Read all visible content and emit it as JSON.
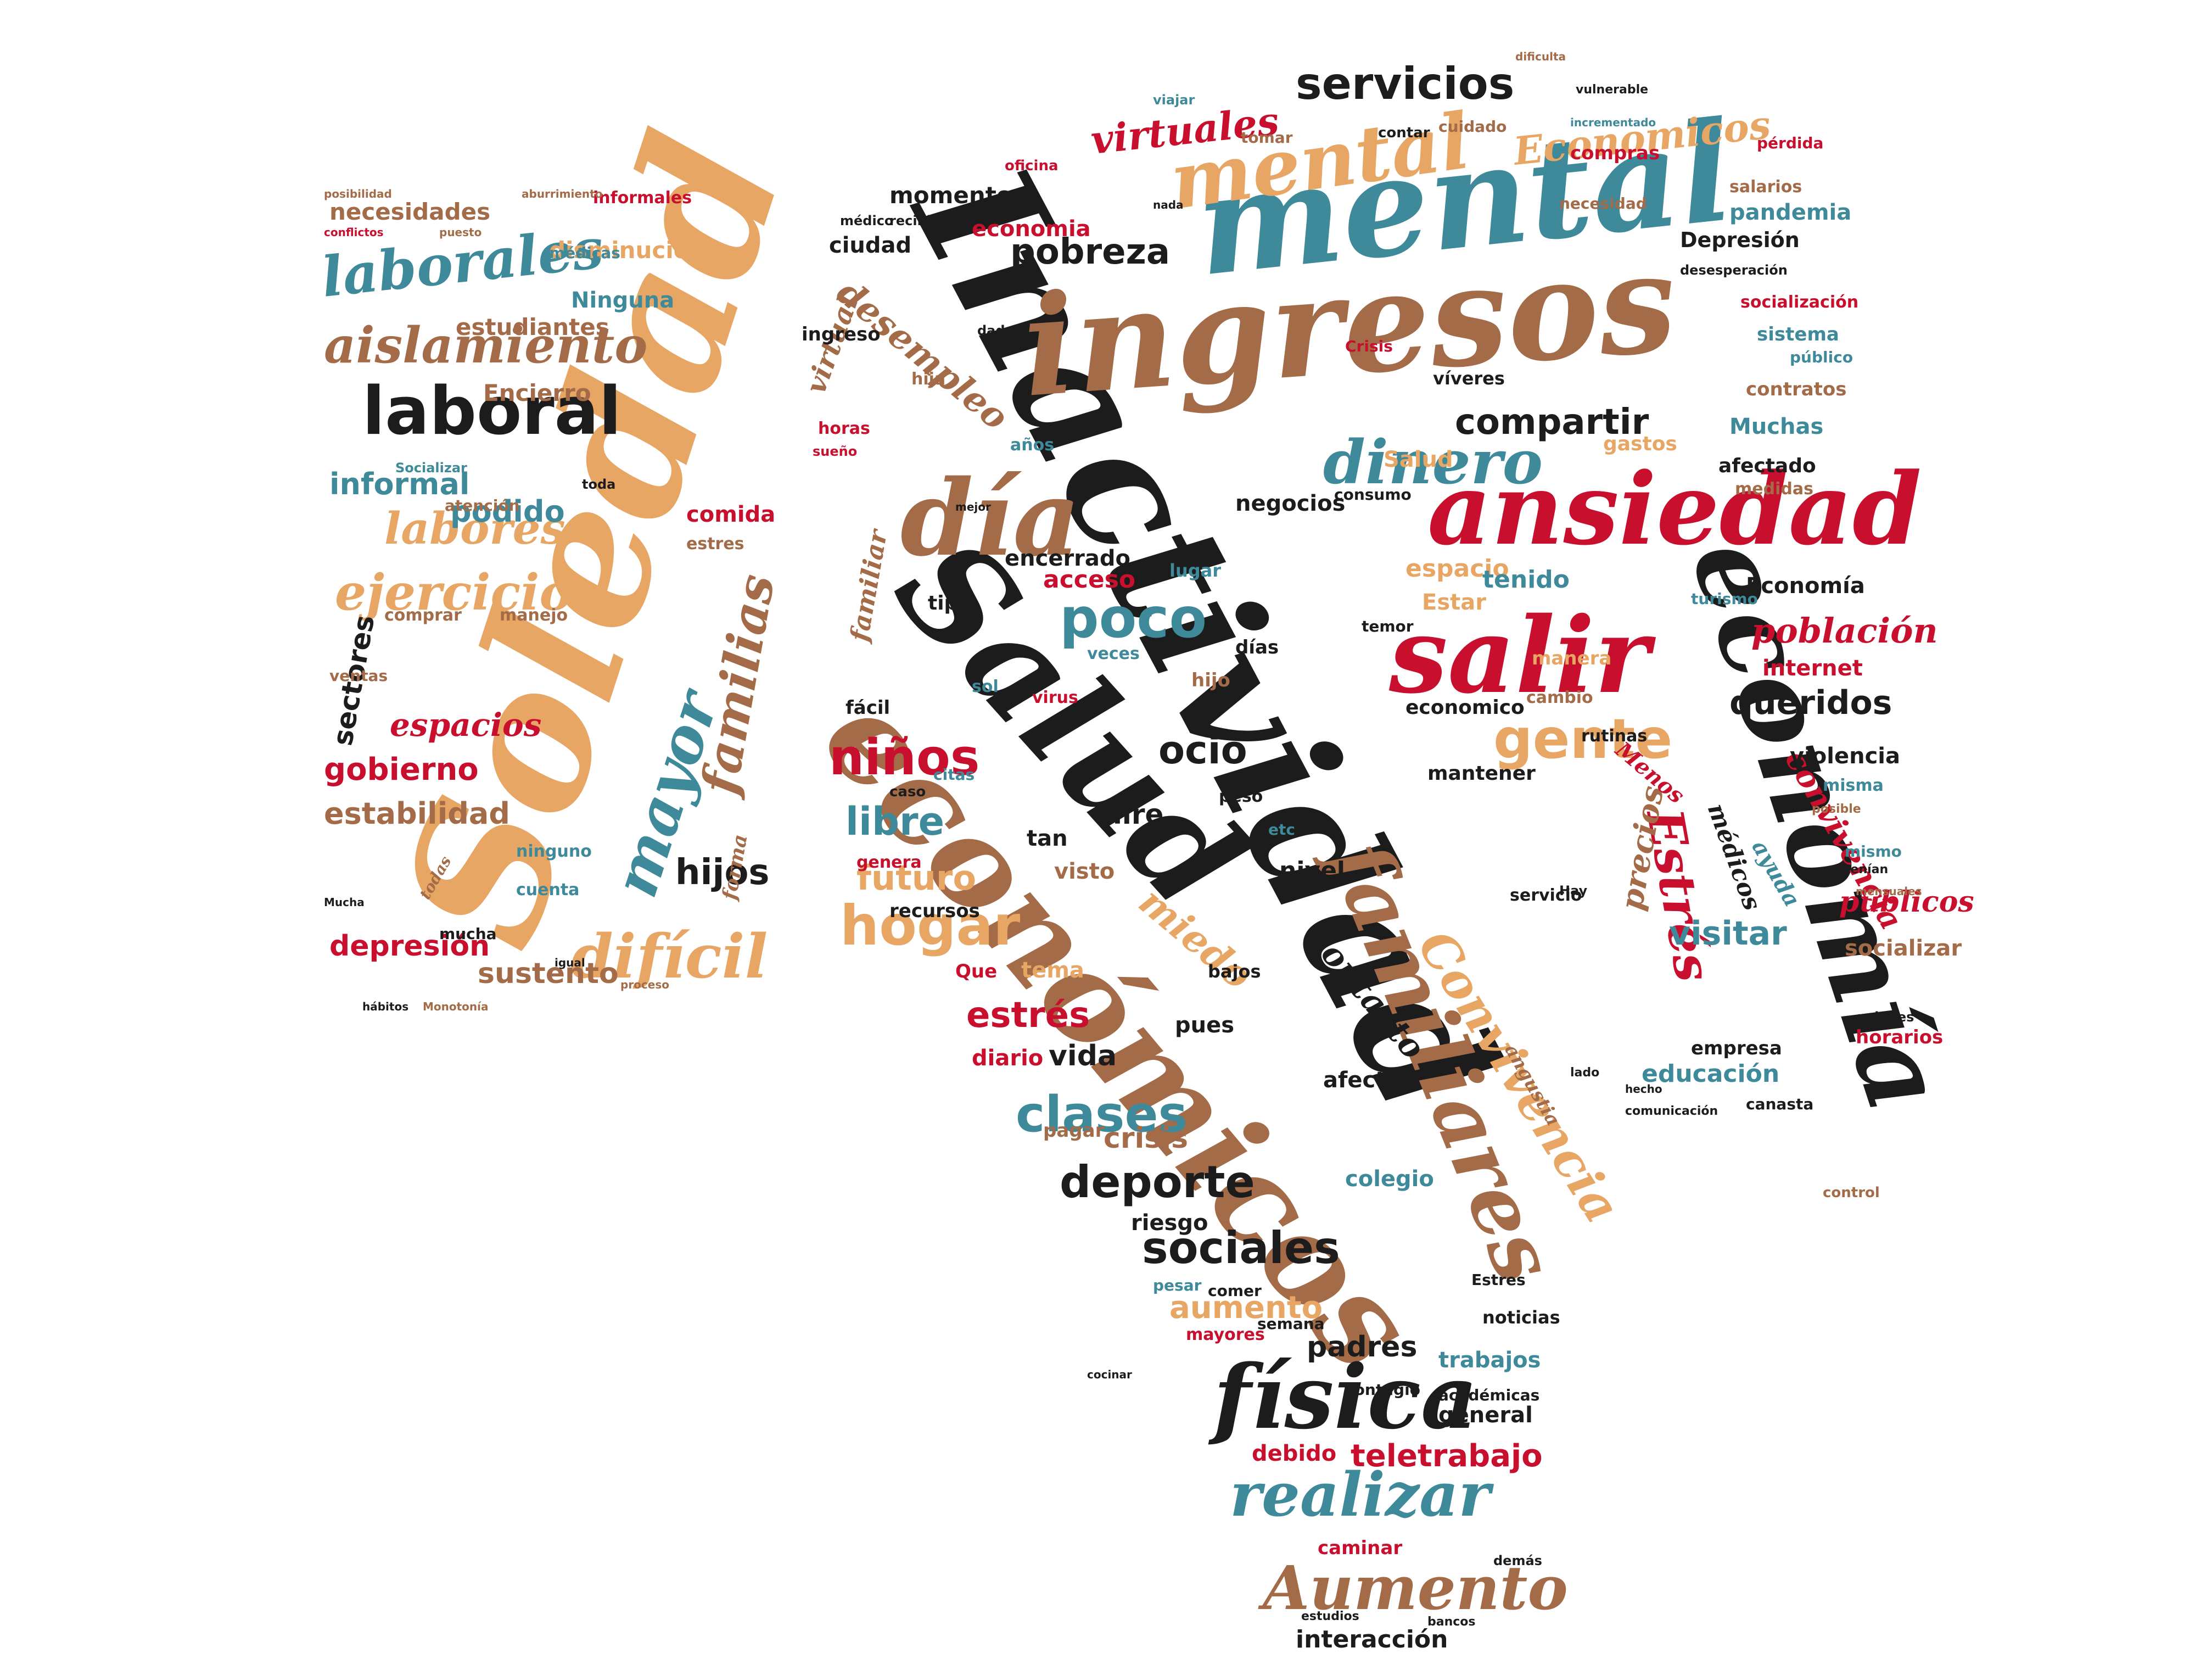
{
  "palette": {
    "black": "#1c1c1c",
    "teal": "#3e8a9a",
    "brown": "#a36b47",
    "sand": "#e8a665",
    "red": "#c8102e"
  },
  "words": [
    {
      "key": "inactividad",
      "text": "Inactividad"
    },
    {
      "key": "soledad",
      "text": "Soledad"
    },
    {
      "key": "ingresos",
      "text": "ingresos"
    },
    {
      "key": "mental",
      "text": "mental"
    },
    {
      "key": "salud",
      "text": "Salud"
    },
    {
      "key": "economicos",
      "text": "económicos"
    },
    {
      "key": "economia",
      "text": "economía"
    },
    {
      "key": "ansiedad",
      "text": "ansiedad"
    },
    {
      "key": "dia",
      "text": "día"
    },
    {
      "key": "salir",
      "text": "salir"
    },
    {
      "key": "familiares",
      "text": "familiares"
    },
    {
      "key": "fisica",
      "text": "física"
    },
    {
      "key": "mental2",
      "text": "mental"
    },
    {
      "key": "laboral",
      "text": "laboral"
    },
    {
      "key": "laborales",
      "text": "laborales"
    },
    {
      "key": "aislamiento",
      "text": "aislamiento"
    },
    {
      "key": "mayor",
      "text": "mayor"
    },
    {
      "key": "dificil",
      "text": "difícil"
    },
    {
      "key": "ejercicio",
      "text": "ejercicio"
    },
    {
      "key": "labores",
      "text": "labores"
    },
    {
      "key": "familias",
      "text": "familias"
    },
    {
      "key": "dinero",
      "text": "dinero"
    },
    {
      "key": "servicios",
      "text": "servicios"
    },
    {
      "key": "poco",
      "text": "poco"
    },
    {
      "key": "gente",
      "text": "gente"
    },
    {
      "key": "hogar",
      "text": "hogar"
    },
    {
      "key": "ninos",
      "text": "niños"
    },
    {
      "key": "realizar",
      "text": "realizar"
    },
    {
      "key": "aumento_cap",
      "text": "Aumento"
    },
    {
      "key": "convivencia",
      "text": "Convivencia"
    },
    {
      "key": "estres",
      "text": "Estrés"
    },
    {
      "key": "clases",
      "text": "clases"
    },
    {
      "key": "deporte",
      "text": "deporte"
    },
    {
      "key": "sociales",
      "text": "sociales"
    },
    {
      "key": "virtuales",
      "text": "virtuales"
    },
    {
      "key": "compartir",
      "text": "compartir"
    },
    {
      "key": "desempleo",
      "text": "desempleo"
    },
    {
      "key": "economicos_cap",
      "text": "Economicos"
    },
    {
      "key": "poblacion",
      "text": "población"
    },
    {
      "key": "convivencia2",
      "text": "convivencia"
    },
    {
      "key": "visitar",
      "text": "visitar"
    },
    {
      "key": "queridos",
      "text": "queridos"
    },
    {
      "key": "teletrabajo",
      "text": "teletrabajo"
    },
    {
      "key": "miedo",
      "text": "miedo"
    },
    {
      "key": "contacto",
      "text": "contacto"
    },
    {
      "key": "ocio",
      "text": "ocio"
    },
    {
      "key": "libre",
      "text": "libre"
    },
    {
      "key": "futuro",
      "text": "futuro"
    },
    {
      "key": "hijos",
      "text": "hijos"
    },
    {
      "key": "espacios",
      "text": "espacios"
    },
    {
      "key": "gobierno",
      "text": "gobierno"
    },
    {
      "key": "estabilidad",
      "text": "estabilidad"
    },
    {
      "key": "depresion",
      "text": "depresión"
    },
    {
      "key": "sustento",
      "text": "sustento"
    },
    {
      "key": "informal",
      "text": "informal"
    },
    {
      "key": "podido",
      "text": "podido"
    },
    {
      "key": "encierro",
      "text": "Encierro"
    },
    {
      "key": "estudiantes",
      "text": "estudiantes"
    },
    {
      "key": "necesidades",
      "text": "necesidades"
    },
    {
      "key": "disminucion",
      "text": "disminución"
    },
    {
      "key": "ninguna",
      "text": "Ninguna"
    },
    {
      "key": "sectores",
      "text": "sectores"
    },
    {
      "key": "comida",
      "text": "comida"
    },
    {
      "key": "estres2",
      "text": "estrés"
    },
    {
      "key": "pobreza",
      "text": "pobreza"
    },
    {
      "key": "momento",
      "text": "momento"
    },
    {
      "key": "depresion_cap",
      "text": "Depresión"
    },
    {
      "key": "pandemia",
      "text": "pandemia"
    },
    {
      "key": "economia_cap",
      "text": "Economía"
    },
    {
      "key": "precios",
      "text": "precios"
    },
    {
      "key": "medicos",
      "text": "médicos"
    },
    {
      "key": "internet",
      "text": "internet"
    },
    {
      "key": "violencia",
      "text": "violencia"
    },
    {
      "key": "publicos",
      "text": "públicos"
    },
    {
      "key": "socializar",
      "text": "socializar"
    },
    {
      "key": "horarios",
      "text": "horarios"
    },
    {
      "key": "educacion",
      "text": "educación"
    },
    {
      "key": "crisis",
      "text": "crisis"
    },
    {
      "key": "riesgo",
      "text": "riesgo"
    },
    {
      "key": "colegio",
      "text": "colegio"
    },
    {
      "key": "vida",
      "text": "vida"
    },
    {
      "key": "diario",
      "text": "diario"
    },
    {
      "key": "padres",
      "text": "padres"
    },
    {
      "key": "trabajos",
      "text": "trabajos"
    },
    {
      "key": "general",
      "text": "general"
    },
    {
      "key": "interaccion",
      "text": "interacción"
    },
    {
      "key": "caminar",
      "text": "caminar"
    },
    {
      "key": "debido",
      "text": "debido"
    },
    {
      "key": "aumento",
      "text": "aumento"
    },
    {
      "key": "nivel",
      "text": "nivel"
    },
    {
      "key": "acceso",
      "text": "acceso"
    },
    {
      "key": "encerrado",
      "text": "encerrado"
    },
    {
      "key": "espacio",
      "text": "espacio"
    },
    {
      "key": "tenido",
      "text": "tenido"
    },
    {
      "key": "negocios",
      "text": "negocios"
    },
    {
      "key": "economico",
      "text": "economico"
    },
    {
      "key": "mantener",
      "text": "mantener"
    },
    {
      "key": "muchas",
      "text": "Muchas"
    },
    {
      "key": "gastos",
      "text": "gastos"
    },
    {
      "key": "afectado",
      "text": "afectado"
    },
    {
      "key": "socializacion",
      "text": "socialización"
    },
    {
      "key": "sistema",
      "text": "sistema"
    },
    {
      "key": "contratos",
      "text": "contratos"
    },
    {
      "key": "ciudad",
      "text": "ciudad"
    },
    {
      "key": "economia2",
      "text": "economia"
    },
    {
      "key": "compras",
      "text": "compras"
    },
    {
      "key": "salarios",
      "text": "salarios"
    },
    {
      "key": "perdida",
      "text": "pérdida"
    },
    {
      "key": "necesidad",
      "text": "necesidad"
    },
    {
      "key": "recursos",
      "text": "recursos"
    },
    {
      "key": "ayuda",
      "text": "ayuda"
    },
    {
      "key": "estres3",
      "text": "estres"
    },
    {
      "key": "atencion",
      "text": "atención"
    },
    {
      "key": "manejo",
      "text": "manejo"
    },
    {
      "key": "comprar",
      "text": "comprar"
    },
    {
      "key": "ventas",
      "text": "ventas"
    },
    {
      "key": "ninguno",
      "text": "ninguno"
    },
    {
      "key": "cuenta",
      "text": "cuenta"
    },
    {
      "key": "mucha",
      "text": "mucha"
    },
    {
      "key": "forma",
      "text": "forma"
    },
    {
      "key": "salud2",
      "text": "Salud"
    },
    {
      "key": "virtual",
      "text": "virtual"
    },
    {
      "key": "familiar",
      "text": "familiar"
    },
    {
      "key": "tipo",
      "text": "tipo"
    },
    {
      "key": "veces",
      "text": "veces"
    },
    {
      "key": "aire",
      "text": "aire"
    },
    {
      "key": "tan",
      "text": "tan"
    },
    {
      "key": "visto",
      "text": "visto"
    },
    {
      "key": "tema",
      "text": "tema"
    },
    {
      "key": "pagar",
      "text": "pagar"
    },
    {
      "key": "afecta",
      "text": "afecta"
    },
    {
      "key": "empresa",
      "text": "empresa"
    },
    {
      "key": "dias",
      "text": "días"
    },
    {
      "key": "manera",
      "text": "manera"
    },
    {
      "key": "pues",
      "text": "pues"
    },
    {
      "key": "noticias",
      "text": "noticias"
    },
    {
      "key": "servicio",
      "text": "servicio"
    },
    {
      "key": "lugar",
      "text": "lugar"
    },
    {
      "key": "sol",
      "text": "sol"
    },
    {
      "key": "facil",
      "text": "fácil"
    },
    {
      "key": "genera",
      "text": "genera"
    },
    {
      "key": "hija",
      "text": "hija"
    },
    {
      "key": "anos",
      "text": "años"
    },
    {
      "key": "horas",
      "text": "horas"
    },
    {
      "key": "viveres",
      "text": "víveres"
    },
    {
      "key": "cambio",
      "text": "cambio"
    },
    {
      "key": "mismo",
      "text": "mismo"
    },
    {
      "key": "misma",
      "text": "misma"
    },
    {
      "key": "menos",
      "text": "Menos"
    },
    {
      "key": "bajos",
      "text": "bajos"
    },
    {
      "key": "peso",
      "text": "peso"
    },
    {
      "key": "semana",
      "text": "semana"
    },
    {
      "key": "contagio",
      "text": "contagio"
    },
    {
      "key": "academicas",
      "text": "académicas"
    },
    {
      "key": "mayores",
      "text": "mayores"
    },
    {
      "key": "pesar",
      "text": "pesar"
    },
    {
      "key": "comer",
      "text": "comer"
    },
    {
      "key": "canasta",
      "text": "canasta"
    },
    {
      "key": "angustia",
      "text": "angustia"
    },
    {
      "key": "ingreso",
      "text": "ingreso"
    },
    {
      "key": "rutinas",
      "text": "rutinas"
    },
    {
      "key": "turismo",
      "text": "turismo"
    },
    {
      "key": "temor",
      "text": "temor"
    },
    {
      "key": "estar",
      "text": "Estar"
    },
    {
      "key": "consumo",
      "text": "consumo"
    },
    {
      "key": "medidas",
      "text": "medidas"
    },
    {
      "key": "publico",
      "text": "público"
    },
    {
      "key": "crisis_cap",
      "text": "Crisis"
    },
    {
      "key": "cuidado",
      "text": "cuidado"
    },
    {
      "key": "contar",
      "text": "contar"
    },
    {
      "key": "tomar",
      "text": "tomar"
    },
    {
      "key": "oficina",
      "text": "oficina"
    },
    {
      "key": "viajar",
      "text": "viajar"
    },
    {
      "key": "vulnerable",
      "text": "vulnerable"
    },
    {
      "key": "dificulta",
      "text": "dificulta"
    },
    {
      "key": "incrementado",
      "text": "incrementado"
    },
    {
      "key": "nada",
      "text": "nada"
    },
    {
      "key": "medicas",
      "text": "médicas"
    },
    {
      "key": "informales",
      "text": "informales"
    },
    {
      "key": "aburrimiento",
      "text": "aburrimiento"
    },
    {
      "key": "posibilidad",
      "text": "posibilidad"
    },
    {
      "key": "conflictos",
      "text": "conflictos"
    },
    {
      "key": "puesto",
      "text": "puesto"
    },
    {
      "key": "dado",
      "text": "dado"
    },
    {
      "key": "recibir",
      "text": "recibir"
    },
    {
      "key": "medico",
      "text": "médico"
    },
    {
      "key": "desesperacion",
      "text": "desesperación"
    },
    {
      "key": "socializar_cap",
      "text": "Socializar"
    },
    {
      "key": "toda",
      "text": "toda"
    },
    {
      "key": "todas",
      "text": "todas"
    },
    {
      "key": "hay",
      "text": "Hay"
    },
    {
      "key": "demas",
      "text": "demás"
    },
    {
      "key": "bancos",
      "text": "bancos"
    },
    {
      "key": "estudios",
      "text": "estudios"
    },
    {
      "key": "que",
      "text": "Que"
    },
    {
      "key": "citas",
      "text": "citas"
    },
    {
      "key": "caso",
      "text": "caso"
    },
    {
      "key": "virus",
      "text": "virus"
    },
    {
      "key": "hijo",
      "text": "hijo"
    },
    {
      "key": "etc",
      "text": "etc"
    },
    {
      "key": "comunicacion",
      "text": "comunicación"
    },
    {
      "key": "tenian",
      "text": "tenían"
    },
    {
      "key": "posible",
      "text": "posible"
    },
    {
      "key": "mensuales",
      "text": "mensuales"
    },
    {
      "key": "control",
      "text": "control"
    },
    {
      "key": "quienes",
      "text": "quienes"
    },
    {
      "key": "lado",
      "text": "lado"
    },
    {
      "key": "hecho",
      "text": "hecho"
    },
    {
      "key": "sueno",
      "text": "sueño"
    },
    {
      "key": "mejor",
      "text": "mejor"
    },
    {
      "key": "cocinar",
      "text": "cocinar"
    },
    {
      "key": "estres_cap",
      "text": "Estres"
    },
    {
      "key": "mucha_cap",
      "text": "Mucha"
    },
    {
      "key": "habitos",
      "text": "hábitos"
    },
    {
      "key": "monotonia",
      "text": "Monotonía"
    },
    {
      "key": "igual",
      "text": "igual"
    },
    {
      "key": "proceso",
      "text": "proceso"
    }
  ]
}
